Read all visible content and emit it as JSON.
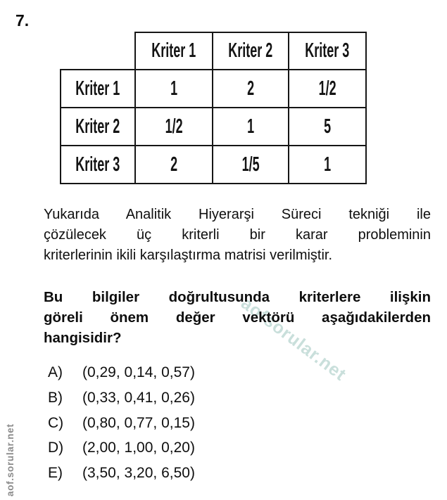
{
  "page": {
    "question_number": "7."
  },
  "table": {
    "col_headers": [
      "Kriter 1",
      "Kriter 2",
      "Kriter 3"
    ],
    "rows": [
      {
        "label": "Kriter 1",
        "values": [
          "1",
          "2",
          "1/2"
        ]
      },
      {
        "label": "Kriter 2",
        "values": [
          "1/2",
          "1",
          "5"
        ]
      },
      {
        "label": "Kriter 3",
        "values": [
          "2",
          "1/5",
          "1"
        ]
      }
    ]
  },
  "paragraph": {
    "lines": [
      "Yukarıda Analitik Hiyerarşi Süreci tekniği ile",
      "çözülecek üç kriterli bir karar probleminin",
      "kriterlerinin ikili karşılaştırma matrisi verilmiştir."
    ]
  },
  "question": {
    "lines": [
      "Bu bilgiler doğrultusunda kriterlere ilişkin",
      "göreli önem değer vektörü aşağıdakilerden",
      "hangisidir?"
    ]
  },
  "options": [
    {
      "letter": "A)",
      "text": "(0,29, 0,14, 0,57)"
    },
    {
      "letter": "B)",
      "text": "(0,33, 0,41, 0,26)"
    },
    {
      "letter": "C)",
      "text": "(0,80, 0,77, 0,15)"
    },
    {
      "letter": "D)",
      "text": "(2,00, 1,00, 0,20)"
    },
    {
      "letter": "E)",
      "text": "(3,50, 3,20, 6,50)"
    }
  ],
  "watermarks": {
    "diagonal_text": "aofsorular.net",
    "vertical_text": "aof.sorular.net",
    "diagonal_color": "#c9dfdb",
    "vertical_color": "#8a8a8a"
  }
}
